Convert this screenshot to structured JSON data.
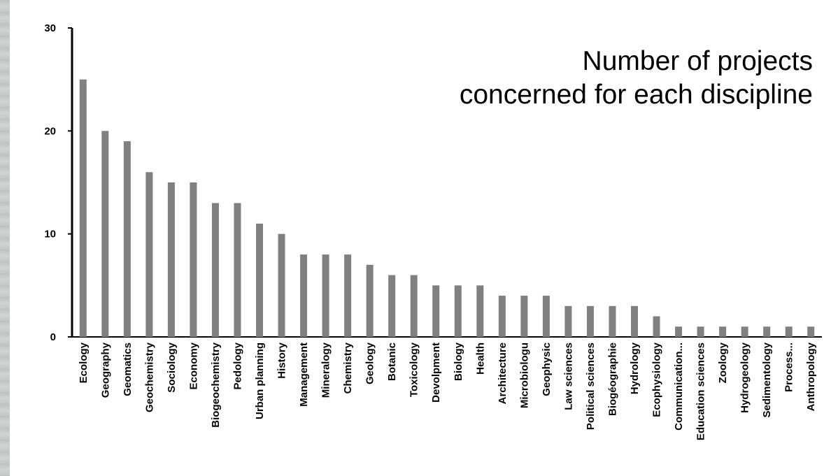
{
  "chart_data": {
    "type": "bar",
    "title_lines": [
      "Number of projects",
      "concerned for each discipline"
    ],
    "xlabel": "",
    "ylabel": "",
    "ylim": [
      0,
      30
    ],
    "yticks": [
      0,
      10,
      20,
      30
    ],
    "grid": false,
    "bar_color": "#808080",
    "categories": [
      "Ecology",
      "Geography",
      "Geomatics",
      "Geochemistry",
      "Sociology",
      "Economy",
      "Biogeochemistry",
      "Pedology",
      "Urban planning",
      "History",
      "Management",
      "Mineralogy",
      "Chemistry",
      "Geology",
      "Botanic",
      "Toxicology",
      "Devolpment",
      "Biology",
      "Health",
      "Architecture",
      "Microbiologu",
      "Geophysic",
      "Law sciences",
      "Political sciences",
      "Biogéographie",
      "Hydrology",
      "Ecophysiology",
      "Communication...",
      "Education sciences",
      "Zoology",
      "Hydrogeology",
      "Sedimentology",
      "Process...",
      "Anthropology"
    ],
    "values": [
      25,
      20,
      19,
      16,
      15,
      15,
      13,
      13,
      11,
      10,
      8,
      8,
      8,
      7,
      6,
      6,
      5,
      5,
      5,
      4,
      4,
      4,
      3,
      3,
      3,
      3,
      2,
      1,
      1,
      1,
      1,
      1,
      1,
      1
    ]
  }
}
